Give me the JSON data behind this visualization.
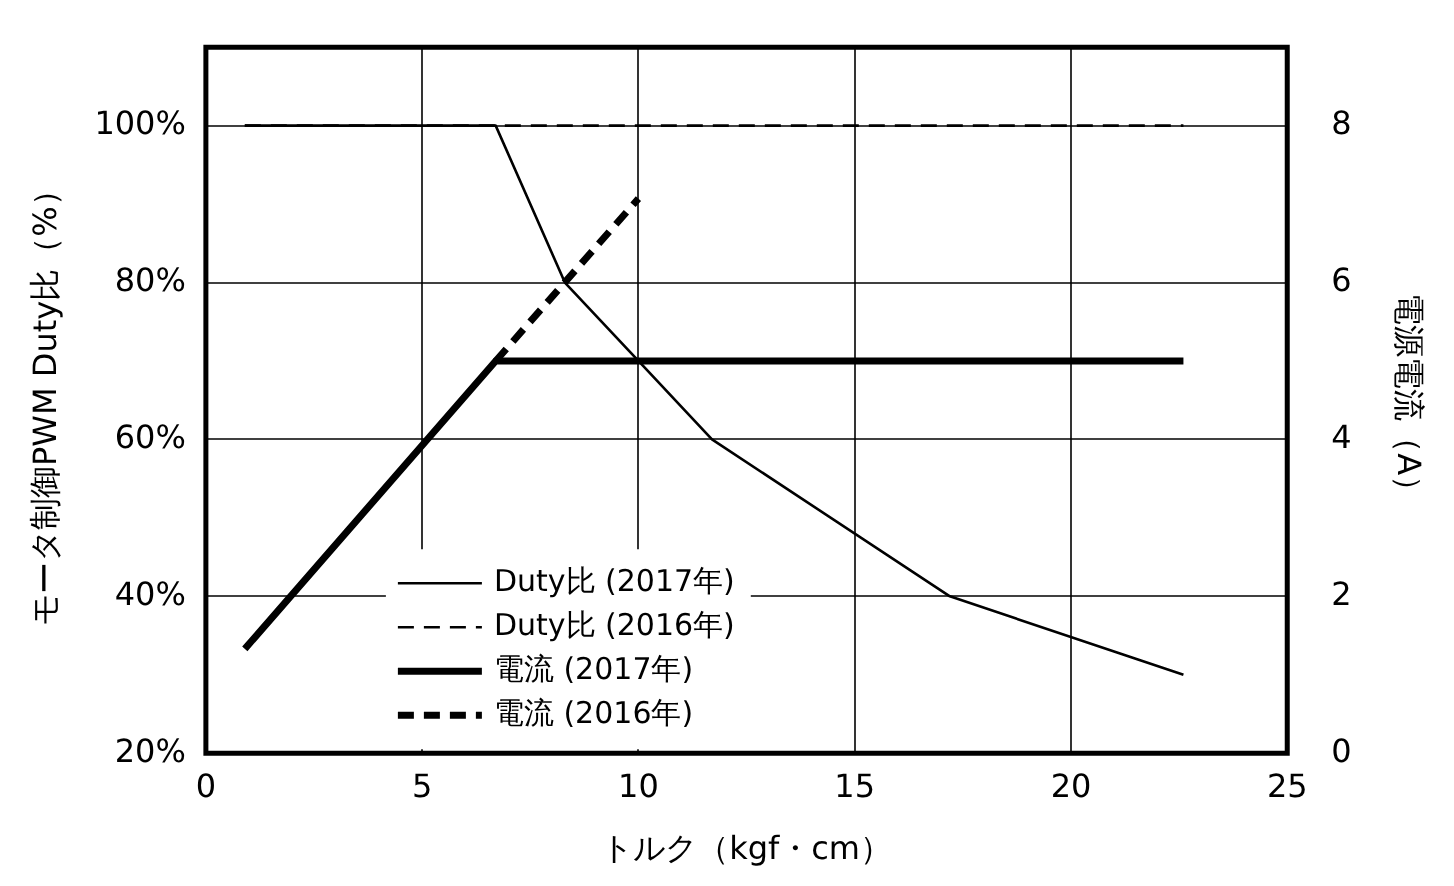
{
  "chart_data": {
    "type": "line",
    "xlabel": "トルク（kgf・cm）",
    "ylabel": "モータ制御PWM Duty比（%）",
    "y2label": "電源電流（A）",
    "xlim": [
      0,
      25
    ],
    "xticks": [
      0,
      5,
      10,
      15,
      20,
      25
    ],
    "ylim": [
      20,
      110
    ],
    "yticks": [
      {
        "value": 20,
        "label": "20%"
      },
      {
        "value": 40,
        "label": "40%"
      },
      {
        "value": 60,
        "label": "60%"
      },
      {
        "value": 80,
        "label": "80%"
      },
      {
        "value": 100,
        "label": "100%"
      }
    ],
    "y2lim": [
      0,
      9
    ],
    "y2ticks": [
      0,
      2,
      4,
      6,
      8
    ],
    "grid": true,
    "legend": "bottom left",
    "marker": "none",
    "series": [
      {
        "name": "Duty比 (2017年)",
        "color": "#000000",
        "line_style": "solid",
        "x": [
          0.9,
          6.7,
          8.3,
          10,
          11.7,
          17.2,
          22.6
        ],
        "values": [
          100,
          100,
          80,
          70,
          60,
          40,
          30
        ]
      },
      {
        "name": "Duty比 (2016年)",
        "color": "#000000",
        "line_style": "dashed",
        "x": [
          0.9,
          22.6
        ],
        "values": [
          100,
          100
        ]
      },
      {
        "name": "電流 (2017年)",
        "color": "#000000",
        "line_style": "solid",
        "axis": "y2",
        "x": [
          0.9,
          6.7,
          22.6
        ],
        "values": [
          1.33,
          5,
          5
        ]
      },
      {
        "name": "電流 (2016年)",
        "color": "#000000",
        "line_style": "dashed",
        "axis": "y2",
        "x": [
          6.7,
          10
        ],
        "values": [
          5,
          7.07
        ]
      }
    ]
  }
}
